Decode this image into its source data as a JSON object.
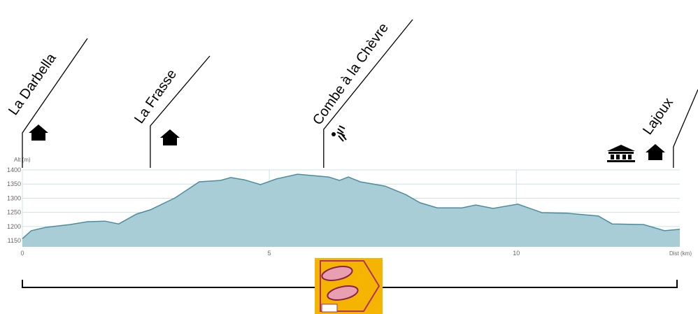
{
  "chart_data": {
    "type": "area",
    "y_label": "Alt (m)",
    "x_label": "Dist (km)",
    "x": [
      0,
      0.18,
      0.47,
      0.96,
      1.32,
      1.67,
      1.95,
      2.31,
      2.59,
      3.09,
      3.58,
      4.01,
      4.22,
      4.5,
      4.82,
      5.14,
      5.57,
      6.2,
      6.42,
      6.6,
      6.84,
      7.34,
      7.76,
      8.05,
      8.4,
      8.9,
      9.18,
      9.53,
      10.03,
      10.52,
      11.02,
      11.66,
      11.94,
      12.58,
      13.0,
      13.31
    ],
    "values": [
      1157,
      1185,
      1197,
      1207,
      1217,
      1219,
      1209,
      1244,
      1259,
      1301,
      1358,
      1363,
      1373,
      1365,
      1348,
      1368,
      1385,
      1375,
      1363,
      1375,
      1358,
      1343,
      1313,
      1284,
      1266,
      1266,
      1276,
      1264,
      1279,
      1249,
      1247,
      1237,
      1209,
      1207,
      1185,
      1190
    ],
    "color": "#a9cdd6",
    "line_color": "#4b8d9e",
    "xlim": [
      0,
      13.31
    ],
    "ylim": [
      1128,
      1400
    ],
    "xticks": [
      0,
      5,
      10
    ],
    "yticks": [
      1150,
      1200,
      1250,
      1300,
      1350,
      1400
    ],
    "grid": true,
    "waypoints": [
      {
        "name": "La Darbella",
        "km": 0
      },
      {
        "name": "La Frasse",
        "km": 2.59
      },
      {
        "name": "Combe à la Chèvre",
        "km": 6.1
      },
      {
        "name": "Lajoux",
        "km": 13.18
      }
    ]
  }
}
